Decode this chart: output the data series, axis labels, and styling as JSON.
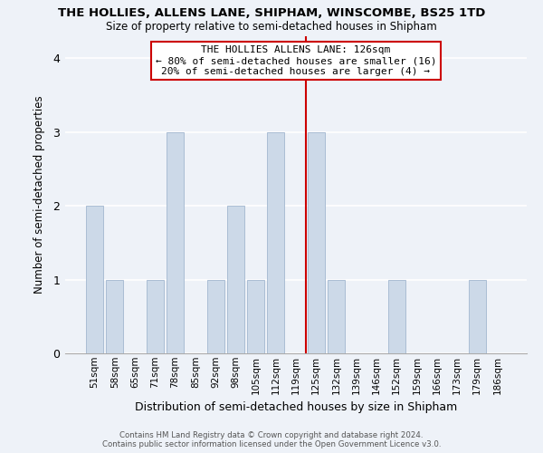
{
  "title": "THE HOLLIES, ALLENS LANE, SHIPHAM, WINSCOMBE, BS25 1TD",
  "subtitle": "Size of property relative to semi-detached houses in Shipham",
  "xlabel": "Distribution of semi-detached houses by size in Shipham",
  "ylabel": "Number of semi-detached properties",
  "footer_line1": "Contains HM Land Registry data © Crown copyright and database right 2024.",
  "footer_line2": "Contains public sector information licensed under the Open Government Licence v3.0.",
  "bin_labels": [
    "51sqm",
    "58sqm",
    "65sqm",
    "71sqm",
    "78sqm",
    "85sqm",
    "92sqm",
    "98sqm",
    "105sqm",
    "112sqm",
    "119sqm",
    "125sqm",
    "132sqm",
    "139sqm",
    "146sqm",
    "152sqm",
    "159sqm",
    "166sqm",
    "173sqm",
    "179sqm",
    "186sqm"
  ],
  "bar_values": [
    2,
    1,
    0,
    1,
    3,
    0,
    1,
    2,
    1,
    3,
    0,
    3,
    1,
    0,
    0,
    1,
    0,
    0,
    0,
    1,
    0
  ],
  "bar_color": "#ccd9e8",
  "bar_edge_color": "#aabdd4",
  "highlight_line_color": "#cc0000",
  "annotation_title": "THE HOLLIES ALLENS LANE: 126sqm",
  "annotation_line1": "← 80% of semi-detached houses are smaller (16)",
  "annotation_line2": "20% of semi-detached houses are larger (4) →",
  "annotation_box_color": "#ffffff",
  "annotation_box_edge_color": "#cc0000",
  "ylim": [
    0,
    4.3
  ],
  "yticks": [
    0,
    1,
    2,
    3,
    4
  ],
  "background_color": "#eef2f8",
  "grid_color": "#ffffff",
  "title_fontsize": 9.5,
  "subtitle_fontsize": 8.5
}
